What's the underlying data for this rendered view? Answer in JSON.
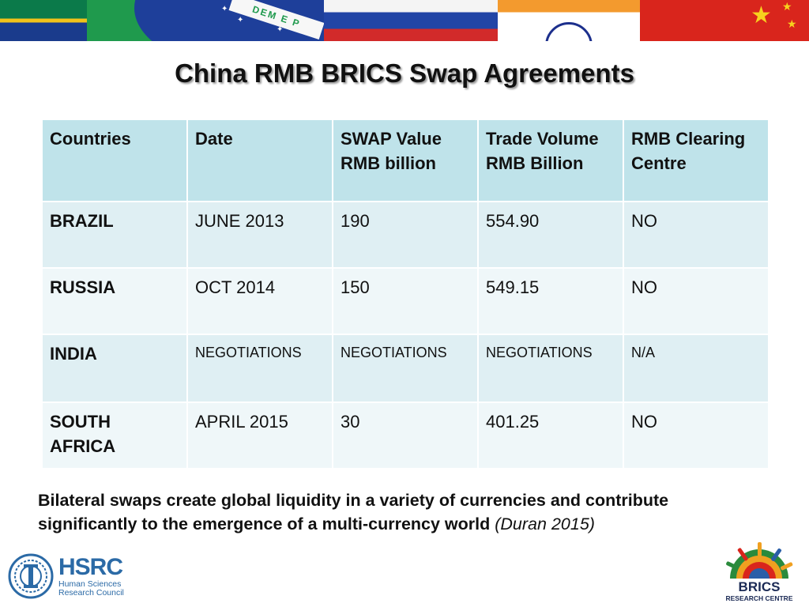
{
  "banner": {
    "brazil_band_text": "DEM E P"
  },
  "title": "China RMB BRICS Swap Agreements",
  "table": {
    "headers": [
      "Countries",
      "Date",
      "SWAP Value RMB billion",
      "Trade Volume RMB Billion",
      "RMB Clearing Centre"
    ],
    "rows": [
      [
        "BRAZIL",
        "JUNE 2013",
        "190",
        "554.90",
        "NO"
      ],
      [
        "RUSSIA",
        "OCT 2014",
        "150",
        "549.15",
        "NO"
      ],
      [
        "INDIA",
        "NEGOTIATIONS",
        "NEGOTIATIONS",
        "NEGOTIATIONS",
        "N/A"
      ],
      [
        "SOUTH AFRICA",
        "APRIL 2015",
        "30",
        "401.25",
        "NO"
      ]
    ]
  },
  "quote": {
    "text": "Bilateral swaps create global liquidity in a variety of currencies and contribute significantly to the emergence of a multi-currency world",
    "citation": "(Duran 2015)"
  },
  "logos": {
    "hsrc_name": "HSRC",
    "hsrc_line1": "Human Sciences",
    "hsrc_line2": "Research Council",
    "brics_word": "BRICS",
    "brics_sub": "RESEARCH CENTRE"
  },
  "colors": {
    "header_bg": "#bfe3ea",
    "row_odd_bg": "#dfeff3",
    "row_even_bg": "#eff7f9",
    "hsrc_blue": "#2b6aa6",
    "brics_navy": "#1b2a55"
  }
}
